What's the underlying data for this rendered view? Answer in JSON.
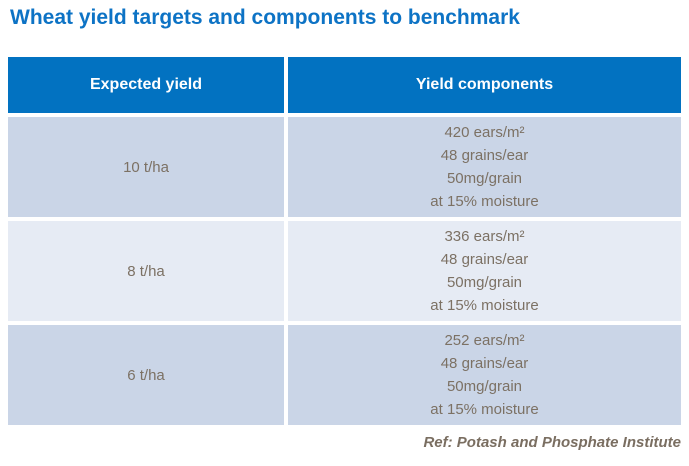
{
  "title": "Wheat yield targets and components to benchmark",
  "colors": {
    "title_blue": "#0d73c5",
    "header_bg": "#0272c1",
    "header_text": "#ffffff",
    "row_bg": "#cad5e7",
    "row_alt_bg": "#e6ebf4",
    "cell_text": "#7c7164",
    "ref_text": "#7a6e61"
  },
  "table": {
    "headers": [
      "Expected yield",
      "Yield components"
    ],
    "rows": [
      {
        "yield": "10 t/ha",
        "components": [
          "420 ears/m²",
          "48 grains/ear",
          "50mg/grain",
          "at 15% moisture"
        ]
      },
      {
        "yield": "8 t/ha",
        "components": [
          "336 ears/m²",
          "48 grains/ear",
          "50mg/grain",
          "at 15% moisture"
        ]
      },
      {
        "yield": "6 t/ha",
        "components": [
          "252 ears/m²",
          "48 grains/ear",
          "50mg/grain",
          "at 15% moisture"
        ]
      }
    ]
  },
  "footer": {
    "ref": "Ref: Potash and Phosphate Institute"
  }
}
